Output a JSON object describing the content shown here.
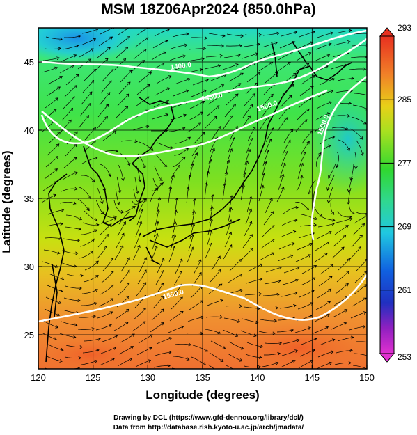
{
  "title": "MSM 18Z06Apr2024 (850.0hPa)",
  "xaxis": {
    "label": "Longitude (degrees)",
    "range": [
      120,
      150
    ],
    "ticks": [
      120,
      125,
      130,
      135,
      140,
      145,
      150
    ]
  },
  "yaxis": {
    "label": "Latitude  (degrees)",
    "range": [
      22.5,
      47.5
    ],
    "ticks": [
      25,
      30,
      35,
      40,
      45
    ]
  },
  "colorbar": {
    "min": 253,
    "max": 293,
    "labels": [
      293,
      285,
      277,
      269,
      261,
      253
    ]
  },
  "contours": [
    {
      "label": "1400.0"
    },
    {
      "label": "1450.0"
    },
    {
      "label": "1500.0"
    },
    {
      "label": "1550.0"
    },
    {
      "label": "1500.0"
    }
  ],
  "credits": {
    "line1": "Drawing by DCL (https://www.gfd-dennou.org/library/dcl/)",
    "line2": "Data from http://database.rish.kyoto-u.ac.jp/arch/jmadata/"
  }
}
